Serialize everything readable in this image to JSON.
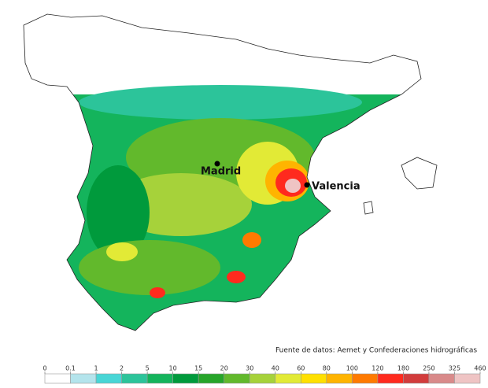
{
  "cities": [
    {
      "label": "Madrid"
    },
    {
      "label": "Valencia"
    }
  ],
  "source": "Fuente de datos: Aemet y Confederaciones hidrográficas",
  "legend": {
    "ticks": [
      0,
      0.1,
      1,
      2,
      5,
      10,
      15,
      20,
      30,
      40,
      60,
      80,
      100,
      120,
      180,
      250,
      325,
      460
    ],
    "colors": [
      "#ffffff",
      "#b4e4ec",
      "#48d6d6",
      "#2cc49a",
      "#14b45c",
      "#009a3c",
      "#27a52a",
      "#62b92c",
      "#a6d23a",
      "#e2ea36",
      "#ffe000",
      "#ffb400",
      "#ff7a00",
      "#ff2a1e",
      "#d23c3c",
      "#d98a8a",
      "#efc4c4"
    ]
  }
}
